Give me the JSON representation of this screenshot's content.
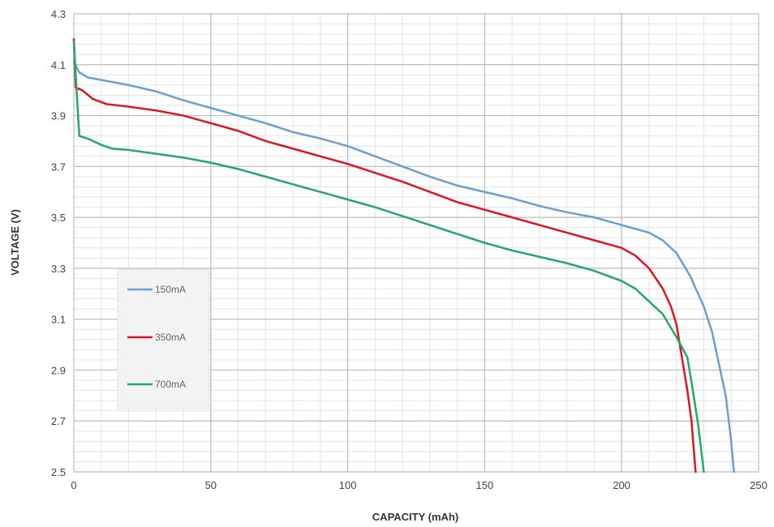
{
  "chart_data": {
    "type": "line",
    "title": "",
    "xlabel": "CAPACITY (mAh)",
    "ylabel": "VOLTAGE (V)",
    "xlim": [
      0,
      250
    ],
    "ylim": [
      2.5,
      4.3
    ],
    "xticks": [
      0,
      50,
      100,
      150,
      200,
      250
    ],
    "yticks": [
      2.5,
      2.7,
      2.9,
      3.1,
      3.3,
      3.5,
      3.7,
      3.9,
      4.1,
      4.3
    ],
    "ytick_labels": [
      "2.5",
      "2.7",
      "2.9",
      "3.1",
      "3.3",
      "3.5",
      "3.7",
      "3.9",
      "4.1",
      "4.3"
    ],
    "grid": true,
    "legend_position": "left-middle",
    "series": [
      {
        "name": "150mA",
        "color": "#6a9fcf",
        "points": [
          [
            0,
            4.11
          ],
          [
            2,
            4.07
          ],
          [
            5,
            4.05
          ],
          [
            10,
            4.04
          ],
          [
            20,
            4.02
          ],
          [
            30,
            3.995
          ],
          [
            40,
            3.96
          ],
          [
            50,
            3.93
          ],
          [
            60,
            3.9
          ],
          [
            70,
            3.87
          ],
          [
            80,
            3.835
          ],
          [
            90,
            3.81
          ],
          [
            100,
            3.78
          ],
          [
            110,
            3.74
          ],
          [
            120,
            3.7
          ],
          [
            130,
            3.66
          ],
          [
            140,
            3.625
          ],
          [
            150,
            3.6
          ],
          [
            160,
            3.575
          ],
          [
            170,
            3.545
          ],
          [
            180,
            3.52
          ],
          [
            190,
            3.5
          ],
          [
            200,
            3.47
          ],
          [
            205,
            3.455
          ],
          [
            210,
            3.44
          ],
          [
            215,
            3.41
          ],
          [
            220,
            3.36
          ],
          [
            225,
            3.27
          ],
          [
            230,
            3.15
          ],
          [
            233,
            3.05
          ],
          [
            236,
            2.9
          ],
          [
            238,
            2.8
          ],
          [
            240,
            2.62
          ],
          [
            241,
            2.5
          ]
        ]
      },
      {
        "name": "350mA",
        "color": "#e0141e",
        "points": [
          [
            0,
            4.2
          ],
          [
            0.7,
            4.01
          ],
          [
            3,
            4.0
          ],
          [
            7,
            3.965
          ],
          [
            12,
            3.945
          ],
          [
            20,
            3.935
          ],
          [
            30,
            3.92
          ],
          [
            40,
            3.9
          ],
          [
            50,
            3.87
          ],
          [
            60,
            3.84
          ],
          [
            70,
            3.8
          ],
          [
            80,
            3.77
          ],
          [
            90,
            3.74
          ],
          [
            100,
            3.71
          ],
          [
            110,
            3.675
          ],
          [
            120,
            3.64
          ],
          [
            130,
            3.6
          ],
          [
            140,
            3.56
          ],
          [
            150,
            3.53
          ],
          [
            160,
            3.5
          ],
          [
            170,
            3.47
          ],
          [
            180,
            3.44
          ],
          [
            190,
            3.41
          ],
          [
            200,
            3.38
          ],
          [
            205,
            3.35
          ],
          [
            210,
            3.3
          ],
          [
            215,
            3.22
          ],
          [
            218,
            3.15
          ],
          [
            220,
            3.08
          ],
          [
            222,
            2.95
          ],
          [
            224,
            2.82
          ],
          [
            225.5,
            2.7
          ],
          [
            227,
            2.5
          ]
        ]
      },
      {
        "name": "700mA",
        "color": "#23a867",
        "points": [
          [
            0,
            4.19
          ],
          [
            1,
            4.0
          ],
          [
            2,
            3.82
          ],
          [
            5,
            3.81
          ],
          [
            10,
            3.785
          ],
          [
            14,
            3.77
          ],
          [
            20,
            3.765
          ],
          [
            30,
            3.75
          ],
          [
            40,
            3.735
          ],
          [
            50,
            3.715
          ],
          [
            60,
            3.69
          ],
          [
            70,
            3.66
          ],
          [
            80,
            3.63
          ],
          [
            90,
            3.6
          ],
          [
            100,
            3.57
          ],
          [
            110,
            3.54
          ],
          [
            120,
            3.505
          ],
          [
            130,
            3.47
          ],
          [
            140,
            3.435
          ],
          [
            150,
            3.4
          ],
          [
            160,
            3.37
          ],
          [
            170,
            3.345
          ],
          [
            180,
            3.32
          ],
          [
            190,
            3.29
          ],
          [
            200,
            3.25
          ],
          [
            205,
            3.22
          ],
          [
            210,
            3.17
          ],
          [
            215,
            3.12
          ],
          [
            220,
            3.03
          ],
          [
            224,
            2.95
          ],
          [
            226,
            2.82
          ],
          [
            228,
            2.68
          ],
          [
            230,
            2.5
          ]
        ]
      }
    ]
  }
}
